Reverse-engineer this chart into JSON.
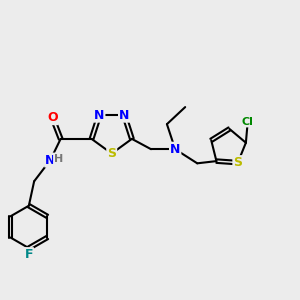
{
  "background_color": "#ececec",
  "bond_color": "#000000",
  "bond_width": 1.5,
  "atom_colors": {
    "C": "#000000",
    "N": "#0000ff",
    "O": "#ff0000",
    "S": "#bbbb00",
    "F": "#008888",
    "Cl": "#008800",
    "H": "#777777"
  },
  "font_size": 9,
  "fig_size": [
    3.0,
    3.0
  ],
  "dpi": 100
}
